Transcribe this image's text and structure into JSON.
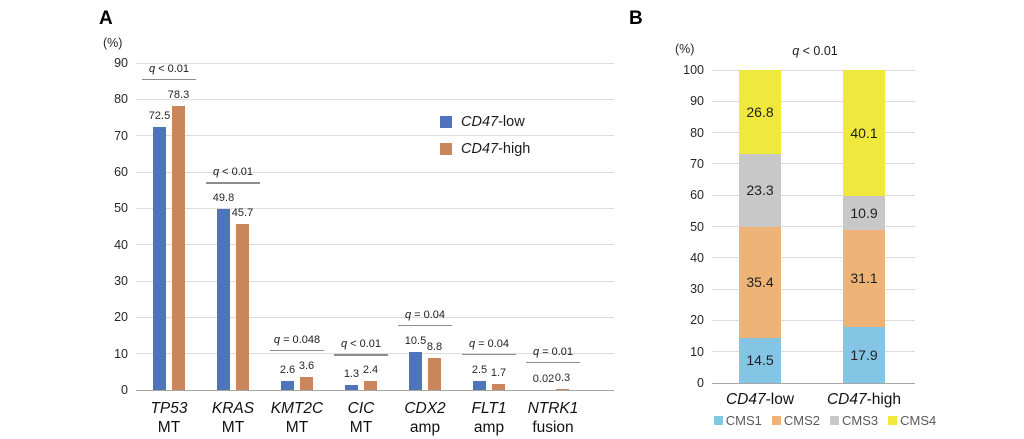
{
  "chart_data": [
    {
      "panel": "A",
      "type": "bar",
      "y_axis_unit": "(%)",
      "ylim": [
        0,
        90
      ],
      "ytick_step": 10,
      "grid": true,
      "legend_position": "inside-right",
      "categories": [
        {
          "italic": "TP53",
          "rest": "MT"
        },
        {
          "italic": "KRAS",
          "rest": "MT"
        },
        {
          "italic": "KMT2C",
          "rest": "MT"
        },
        {
          "italic": "CIC",
          "rest": "MT"
        },
        {
          "italic": "CDX2",
          "rest": "amp"
        },
        {
          "italic": "FLT1",
          "rest": "amp"
        },
        {
          "italic": "NTRK1",
          "rest": "fusion"
        }
      ],
      "series": [
        {
          "name": "CD47-low",
          "label_italic": "CD47",
          "label_rest": "-low",
          "color": "#5074BC",
          "values": [
            72.5,
            49.8,
            2.6,
            1.3,
            10.5,
            2.5,
            0.02
          ]
        },
        {
          "name": "CD47-high",
          "label_italic": "CD47",
          "label_rest": "-high",
          "color": "#C9855C",
          "values": [
            78.3,
            45.7,
            3.6,
            2.4,
            8.8,
            1.7,
            0.3
          ]
        }
      ],
      "value_labels": [
        [
          "72.5",
          "78.3"
        ],
        [
          "49.8",
          "45.7"
        ],
        [
          "2.6",
          "3.6"
        ],
        [
          "1.3",
          "2.4"
        ],
        [
          "10.5",
          "8.8"
        ],
        [
          "2.5",
          "1.7"
        ],
        [
          "0.02",
          "0.3"
        ]
      ],
      "annotations": [
        "q < 0.01",
        "q < 0.01",
        "q = 0.048",
        "q < 0.01",
        "q = 0.04",
        "q = 0.04",
        "q = 0.01"
      ]
    },
    {
      "panel": "B",
      "type": "stacked-bar",
      "heading": "q < 0.01",
      "y_axis_unit": "(%)",
      "ylim": [
        0,
        100
      ],
      "ytick_step": 10,
      "grid": true,
      "legend_position": "bottom",
      "categories": [
        {
          "italic": "CD47",
          "rest": "-low"
        },
        {
          "italic": "CD47",
          "rest": "-high"
        }
      ],
      "series": [
        {
          "name": "CMS1",
          "color": "#84C4E4",
          "values": [
            14.5,
            17.9
          ]
        },
        {
          "name": "CMS2",
          "color": "#EDB377",
          "values": [
            35.4,
            31.1
          ]
        },
        {
          "name": "CMS3",
          "color": "#C8C8C8",
          "values": [
            23.3,
            10.9
          ]
        },
        {
          "name": "CMS4",
          "color": "#EFE93E",
          "values": [
            26.8,
            40.1
          ]
        }
      ],
      "value_labels": [
        [
          "14.5",
          "17.9"
        ],
        [
          "35.4",
          "31.1"
        ],
        [
          "23.3",
          "10.9"
        ],
        [
          "26.8",
          "40.1"
        ]
      ]
    }
  ]
}
